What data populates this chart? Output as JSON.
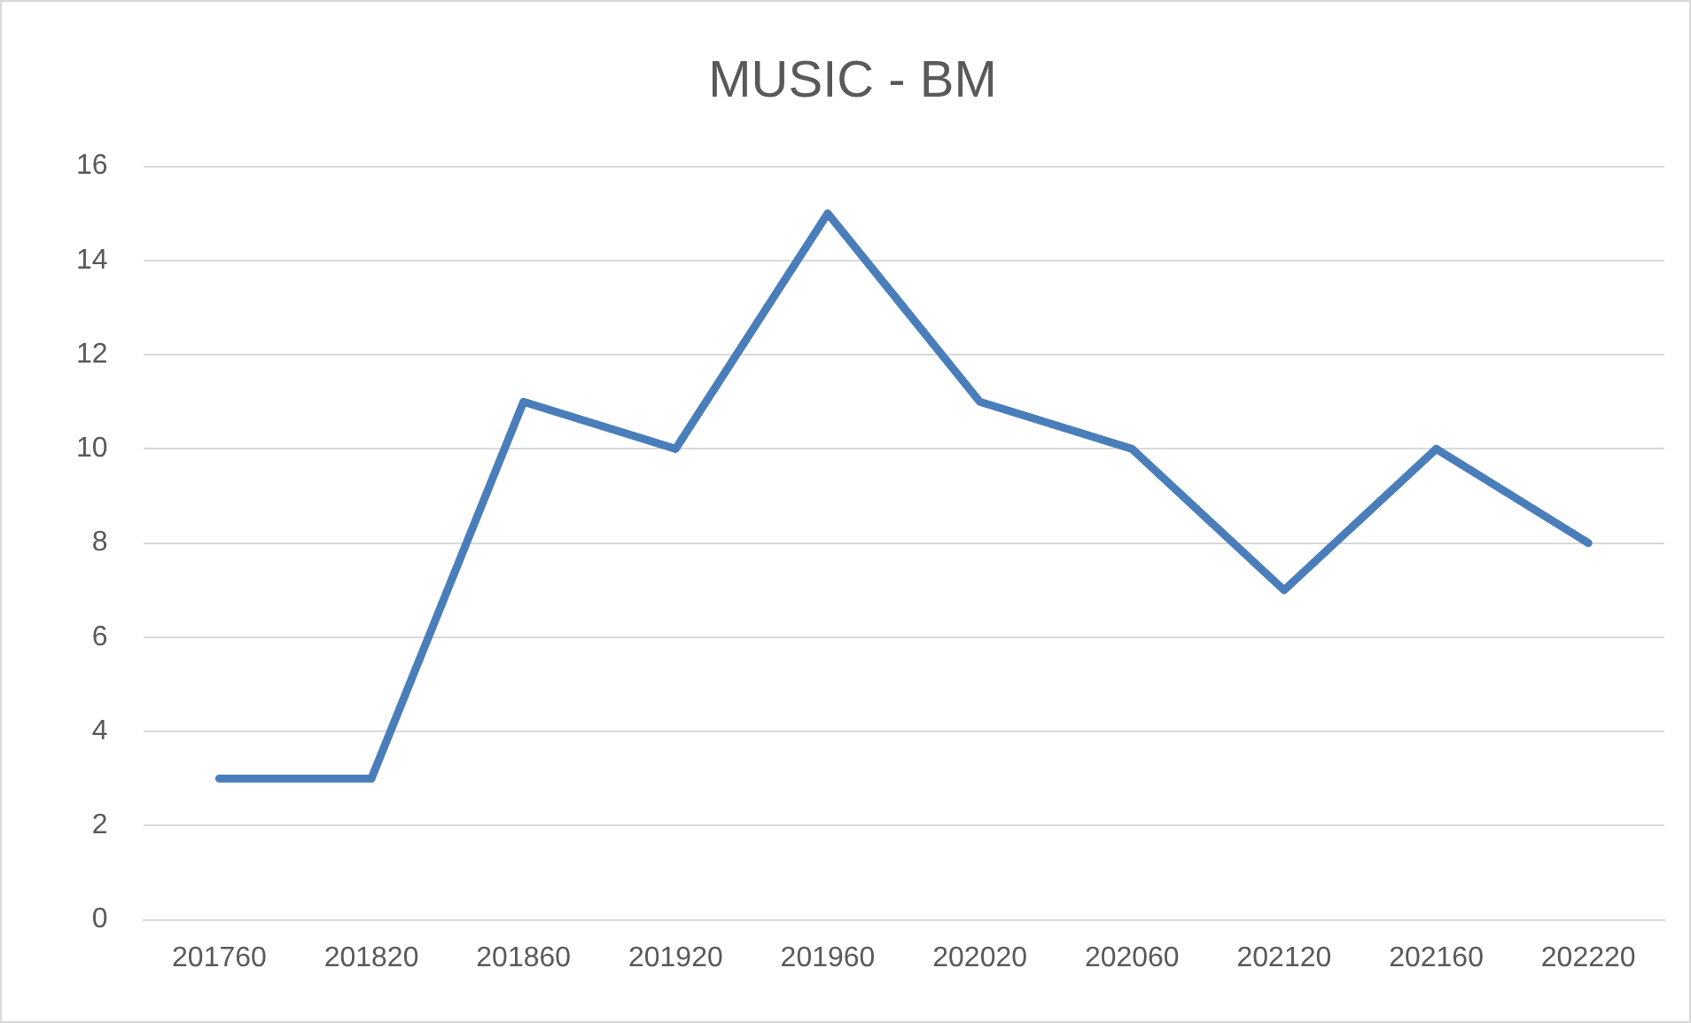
{
  "chart_data": {
    "type": "line",
    "title": "MUSIC - BM",
    "categories": [
      "201760",
      "201820",
      "201860",
      "201920",
      "201960",
      "202020",
      "202060",
      "202120",
      "202160",
      "202220"
    ],
    "series": [
      {
        "color": "#4a7ebb",
        "values": [
          3,
          3,
          11,
          10,
          15,
          11,
          10,
          7,
          10,
          8
        ]
      }
    ],
    "ylim": [
      0,
      16
    ],
    "yticks": [
      0,
      2,
      4,
      6,
      8,
      10,
      12,
      14,
      16
    ],
    "grid": "y",
    "legend": false,
    "marker": "none",
    "line_style": "solid"
  }
}
